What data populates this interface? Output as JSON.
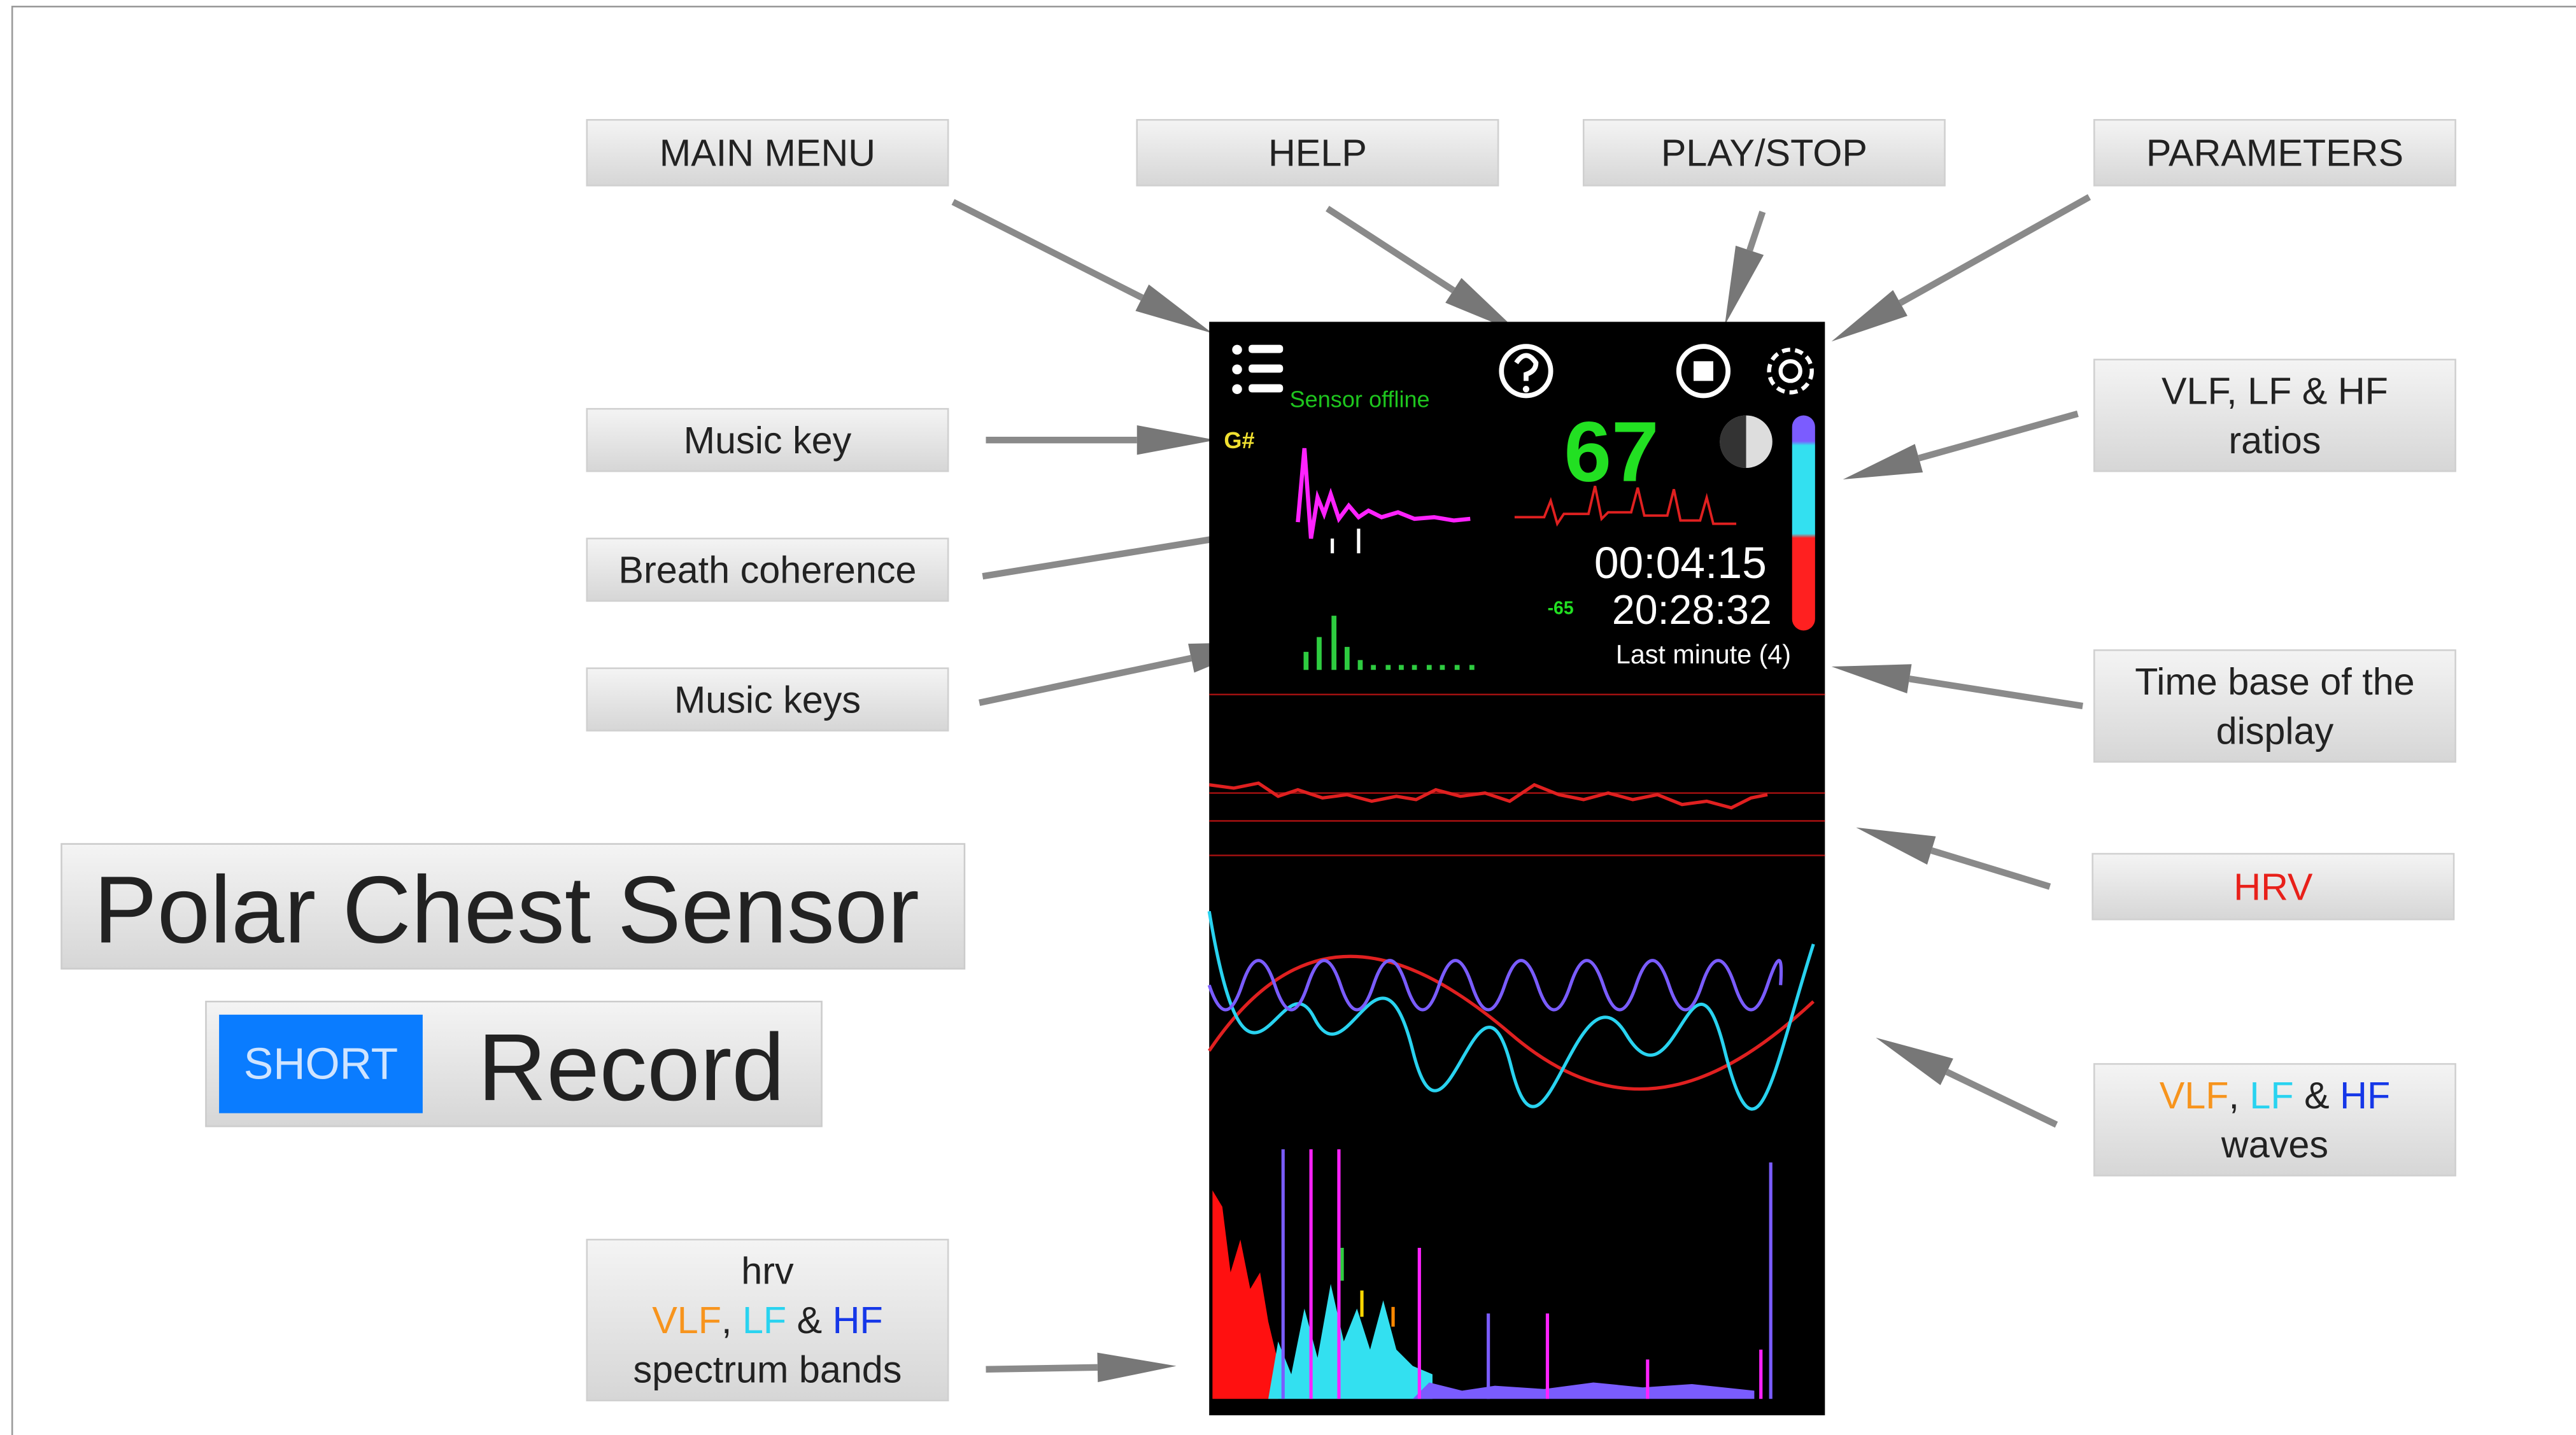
{
  "callouts": [
    {
      "lines": [
        "MAIN MENU"
      ]
    },
    {
      "lines": [
        "HELP"
      ]
    },
    {
      "lines": [
        "PLAY/STOP"
      ]
    },
    {
      "lines": [
        "PARAMETERS"
      ]
    },
    {
      "lines": [
        "Music key"
      ]
    },
    {
      "lines": [
        "Breath coherence"
      ]
    },
    {
      "lines": [
        "Music keys"
      ]
    },
    {
      "lines": [
        "hrv",
        [
          {
            "text": "VLF",
            "color": "#f7941d"
          },
          {
            "text": ", ",
            "color": "#222222"
          },
          {
            "text": "LF",
            "color": "#29d3f0"
          },
          {
            "text": " & ",
            "color": "#222222"
          },
          {
            "text": "HF",
            "color": "#1537e8"
          }
        ],
        "spectrum bands"
      ]
    },
    {
      "lines": [
        "VLF, LF & HF",
        "ratios"
      ]
    },
    {
      "lines": [
        "Time base of the",
        "display"
      ]
    },
    {
      "lines": [
        [
          {
            "text": "HRV",
            "color": "#e8201a"
          }
        ]
      ]
    },
    {
      "lines": [
        [
          {
            "text": "VLF",
            "color": "#f7941d"
          },
          {
            "text": ", ",
            "color": "#222222"
          },
          {
            "text": "LF",
            "color": "#29d3f0"
          },
          {
            "text": " & ",
            "color": "#222222"
          },
          {
            "text": "HF",
            "color": "#1537e8"
          }
        ],
        "waves"
      ]
    }
  ],
  "title": "Polar Chest Sensor",
  "badge": "SHORT",
  "record": "Record",
  "app": {
    "status": "Sensor offline",
    "key": "G#",
    "heart_rate": 67,
    "timer": "00:04:15",
    "level": -65,
    "clock": "20:28:32",
    "time_base": "Last minute (4)"
  }
}
